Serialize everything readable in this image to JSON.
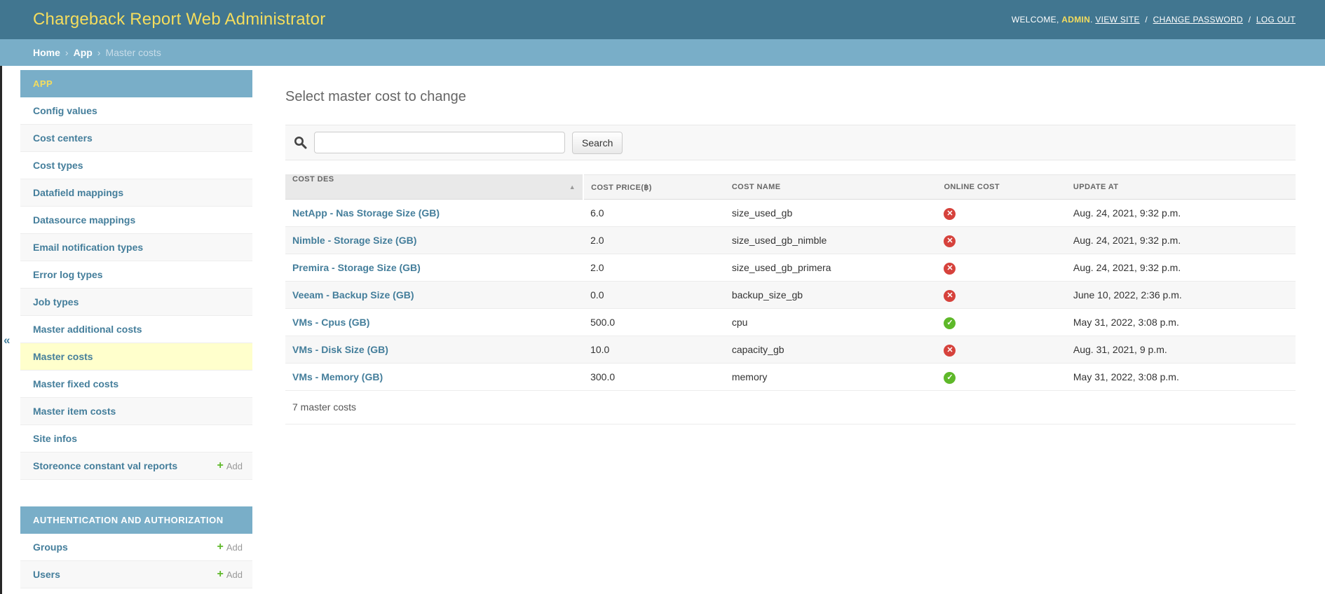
{
  "header": {
    "title": "Chargeback Report Web Administrator",
    "user_tools": {
      "welcome_text": "WELCOME,",
      "username": "ADMIN",
      "after_username": ".",
      "links": [
        "VIEW SITE",
        "CHANGE PASSWORD",
        "LOG OUT"
      ],
      "separator": "/"
    }
  },
  "breadcrumb": {
    "separator": "›",
    "items": [
      {
        "label": "Home",
        "link": true
      },
      {
        "label": "App",
        "link": true
      },
      {
        "label": "Master costs",
        "link": false
      }
    ]
  },
  "sidebar": {
    "toggle_icon": "«",
    "add_label": "Add",
    "sections": [
      {
        "title": "APP",
        "current": true,
        "items": [
          {
            "label": "Config values"
          },
          {
            "label": "Cost centers"
          },
          {
            "label": "Cost types"
          },
          {
            "label": "Datafield mappings"
          },
          {
            "label": "Datasource mappings"
          },
          {
            "label": "Email notification types"
          },
          {
            "label": "Error log types"
          },
          {
            "label": "Job types"
          },
          {
            "label": "Master additional costs"
          },
          {
            "label": "Master costs",
            "selected": true
          },
          {
            "label": "Master fixed costs"
          },
          {
            "label": "Master item costs"
          },
          {
            "label": "Site infos"
          },
          {
            "label": "Storeonce constant val reports",
            "add": true
          }
        ]
      },
      {
        "title": "AUTHENTICATION AND AUTHORIZATION",
        "current": false,
        "items": [
          {
            "label": "Groups",
            "add": true
          },
          {
            "label": "Users",
            "add": true
          }
        ]
      }
    ]
  },
  "main": {
    "heading": "Select master cost to change",
    "search": {
      "value": "",
      "button_label": "Search"
    },
    "table": {
      "columns": [
        "COST DES",
        "COST PRICE(฿)",
        "COST NAME",
        "ONLINE COST",
        "UPDATE AT"
      ],
      "sort": {
        "column": "COST DES",
        "direction": "ascending",
        "arrow": "▲"
      },
      "rows": [
        {
          "cost_des": "NetApp - Nas Storage Size (GB)",
          "cost_price": "6.0",
          "cost_name": "size_used_gb",
          "online_cost": false,
          "update_at": "Aug. 24, 2021, 9:32 p.m."
        },
        {
          "cost_des": "Nimble - Storage Size (GB)",
          "cost_price": "2.0",
          "cost_name": "size_used_gb_nimble",
          "online_cost": false,
          "update_at": "Aug. 24, 2021, 9:32 p.m."
        },
        {
          "cost_des": "Premira - Storage Size (GB)",
          "cost_price": "2.0",
          "cost_name": "size_used_gb_primera",
          "online_cost": false,
          "update_at": "Aug. 24, 2021, 9:32 p.m."
        },
        {
          "cost_des": "Veeam - Backup Size (GB)",
          "cost_price": "0.0",
          "cost_name": "backup_size_gb",
          "online_cost": false,
          "update_at": "June 10, 2022, 2:36 p.m."
        },
        {
          "cost_des": "VMs - Cpus (GB)",
          "cost_price": "500.0",
          "cost_name": "cpu",
          "online_cost": true,
          "update_at": "May 31, 2022, 3:08 p.m."
        },
        {
          "cost_des": "VMs - Disk Size (GB)",
          "cost_price": "10.0",
          "cost_name": "capacity_gb",
          "online_cost": false,
          "update_at": "Aug. 31, 2021, 9 p.m."
        },
        {
          "cost_des": "VMs - Memory (GB)",
          "cost_price": "300.0",
          "cost_name": "memory",
          "online_cost": true,
          "update_at": "May 31, 2022, 3:08 p.m."
        }
      ],
      "icons": {
        "yes_glyph": "✓",
        "no_glyph": "✕"
      }
    },
    "footer_count": "7 master costs"
  },
  "colors": {
    "header_bg": "#417690",
    "accent_blue": "#79aec8",
    "link_blue": "#447e9b",
    "title_yellow": "#f5dd5d",
    "selected_row": "#ffffcc",
    "yes_green": "#5eb829",
    "no_red": "#d6423c"
  }
}
